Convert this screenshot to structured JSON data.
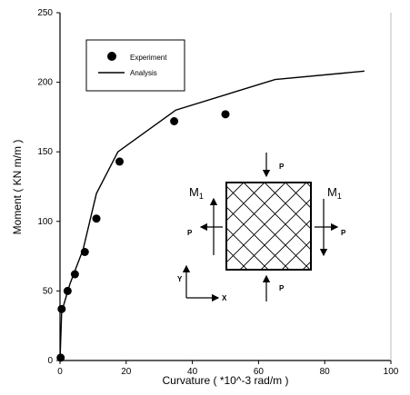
{
  "chart_data": {
    "type": "scatter",
    "xlabel": "Curvature ( *10^-3 rad/m )",
    "ylabel": "Moment ( KN m/m )",
    "xlim": [
      0,
      100
    ],
    "ylim": [
      0,
      250
    ],
    "x_ticks": [
      "0",
      "20",
      "40",
      "60",
      "80",
      "100"
    ],
    "y_ticks": [
      "0",
      "50",
      "100",
      "150",
      "200",
      "250"
    ],
    "grid": false,
    "legend_position": "top-left",
    "series": [
      {
        "name": "Experiment",
        "style": "marker",
        "points": [
          [
            0.2,
            2
          ],
          [
            0.5,
            37
          ],
          [
            2.3,
            50
          ],
          [
            4.5,
            62
          ],
          [
            7.5,
            78
          ],
          [
            11,
            102
          ],
          [
            18,
            143
          ],
          [
            34.5,
            172
          ],
          [
            50,
            177
          ]
        ]
      },
      {
        "name": "Analysis",
        "style": "line",
        "points": [
          [
            0,
            0
          ],
          [
            0.5,
            35
          ],
          [
            3,
            55
          ],
          [
            7,
            80
          ],
          [
            11,
            120
          ],
          [
            17.5,
            150
          ],
          [
            35,
            180
          ],
          [
            65,
            202
          ],
          [
            92,
            208
          ]
        ]
      }
    ],
    "inset_labels": {
      "load_top": "P",
      "load_bottom": "P",
      "load_left": "P",
      "load_right": "P",
      "moment_left": "M",
      "moment_left_sub": "1",
      "moment_right": "M",
      "moment_right_sub": "1",
      "axis_y": "Y",
      "axis_x": "X"
    }
  }
}
